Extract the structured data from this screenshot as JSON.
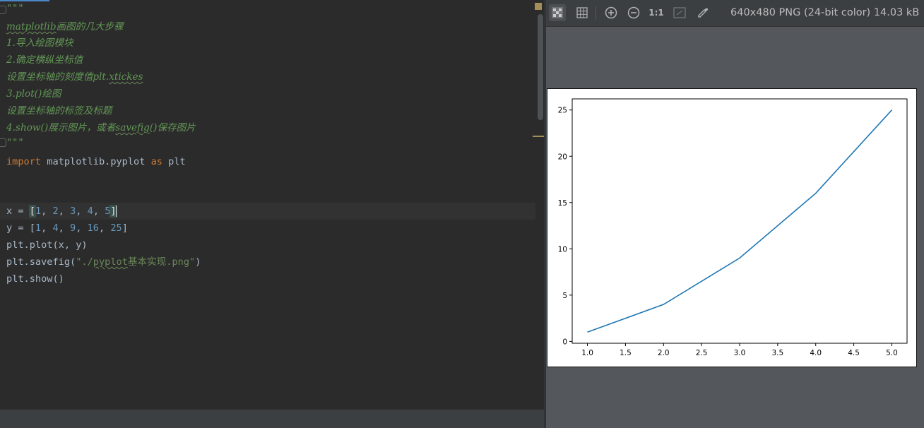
{
  "editor": {
    "lines": [
      {
        "kind": "doc-quote",
        "text": "\"\"\""
      },
      {
        "kind": "doc-title",
        "squiggle": "matplotlib",
        "text": "画图的几大步骤"
      },
      {
        "kind": "doc",
        "text": "1.导入绘图模块"
      },
      {
        "kind": "doc",
        "text": "2.确定横纵坐标值"
      },
      {
        "kind": "doc-xticks",
        "text": "设置坐标轴的刻度值plt.",
        "squiggle": "xtickes"
      },
      {
        "kind": "doc",
        "text": "3.plot()绘图"
      },
      {
        "kind": "doc",
        "text": "设置坐标轴的标签及标题"
      },
      {
        "kind": "doc-save",
        "pre": "4.show()展示图片，或者",
        "squiggle": "savefig",
        "post": "()保存图片"
      },
      {
        "kind": "doc-quote",
        "text": "\"\"\""
      }
    ],
    "code": {
      "import_kw": "import",
      "import_module": " matplotlib.pyplot ",
      "as_kw": "as",
      "import_alias": " plt",
      "x_line": {
        "prefix": "x = ",
        "open": "[",
        "nums": [
          "1",
          "2",
          "3",
          "4",
          "5"
        ],
        "close": "]"
      },
      "y_line": {
        "prefix": "y = [",
        "nums": [
          "1",
          "4",
          "9",
          "16",
          "25"
        ],
        "close": "]"
      },
      "plot_line": "plt.plot(x, y)",
      "savefig_prefix": "plt.savefig(",
      "savefig_str_pre": "\"./",
      "savefig_str_squiggle": "pyplot",
      "savefig_str_post": "基本实现.png\"",
      "savefig_suffix": ")",
      "show_line": "plt.show()"
    }
  },
  "viewer": {
    "toolbar": {
      "buttons": [
        {
          "name": "chessboard-icon",
          "glyph": "▦"
        },
        {
          "name": "grid-icon",
          "glyph": "▦"
        },
        {
          "name": "zoom-in-icon",
          "glyph": "⊕"
        },
        {
          "name": "zoom-out-icon",
          "glyph": "⊖"
        },
        {
          "name": "actual-size-icon",
          "glyph": "1:1"
        },
        {
          "name": "fit-zoom-icon",
          "glyph": "▢"
        },
        {
          "name": "color-picker-icon",
          "glyph": "✎"
        }
      ],
      "image_info": "640x480 PNG (24-bit color) 14.03 kB"
    },
    "chart_data": {
      "type": "line",
      "x": [
        1,
        2,
        3,
        4,
        5
      ],
      "y": [
        1,
        4,
        9,
        16,
        25
      ],
      "xlim": [
        0.8,
        5.2
      ],
      "ylim": [
        -0.2,
        26.2
      ],
      "xticks": [
        "1.0",
        "1.5",
        "2.0",
        "2.5",
        "3.0",
        "3.5",
        "4.0",
        "4.5",
        "5.0"
      ],
      "yticks": [
        "0",
        "5",
        "10",
        "15",
        "20",
        "25"
      ],
      "line_color": "#1f77b4",
      "grid": false,
      "title": "",
      "xlabel": "",
      "ylabel": ""
    }
  }
}
